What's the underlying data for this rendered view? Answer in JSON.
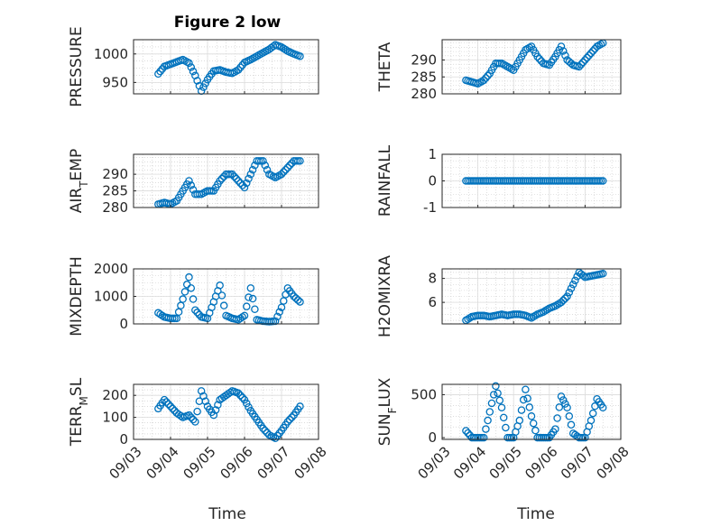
{
  "figure": {
    "title": "Figure 2 low",
    "xlabel": "Time"
  },
  "colors": {
    "marker": "#0072BD",
    "axis": "#262626",
    "grid": "#c8c8c8"
  },
  "chart_data": [
    {
      "type": "scatter",
      "ylabel": "PRESSURE",
      "ylim": [
        930,
        1025
      ],
      "yticks": [
        950,
        1000
      ],
      "xlim": [
        "09/03",
        "09/08"
      ],
      "grid": true,
      "x": [
        "09/03 16:00",
        "09/03 20:00",
        "09/04 00:00",
        "09/04 04:00",
        "09/04 08:00",
        "09/04 12:00",
        "09/04 16:00",
        "09/04 20:00",
        "09/05 00:00",
        "09/05 04:00",
        "09/05 08:00",
        "09/05 12:00",
        "09/05 16:00",
        "09/05 20:00",
        "09/06 00:00",
        "09/06 04:00",
        "09/06 08:00",
        "09/06 12:00",
        "09/06 16:00",
        "09/06 20:00",
        "09/07 00:00",
        "09/07 04:00",
        "09/07 08:00",
        "09/07 12:00"
      ],
      "y": [
        965,
        978,
        982,
        986,
        990,
        984,
        962,
        935,
        955,
        970,
        972,
        968,
        966,
        972,
        985,
        990,
        996,
        1002,
        1008,
        1016,
        1012,
        1005,
        1000,
        996
      ]
    },
    {
      "type": "scatter",
      "ylabel": "THETA",
      "ylim": [
        280,
        296
      ],
      "yticks": [
        280,
        285,
        290
      ],
      "xlim": [
        "09/03",
        "09/08"
      ],
      "grid": true,
      "x": [
        "09/03 16:00",
        "09/03 20:00",
        "09/04 00:00",
        "09/04 04:00",
        "09/04 08:00",
        "09/04 12:00",
        "09/04 16:00",
        "09/04 20:00",
        "09/05 00:00",
        "09/05 04:00",
        "09/05 08:00",
        "09/05 12:00",
        "09/05 16:00",
        "09/05 20:00",
        "09/06 00:00",
        "09/06 04:00",
        "09/06 08:00",
        "09/06 12:00",
        "09/06 16:00",
        "09/06 20:00",
        "09/07 00:00",
        "09/07 04:00",
        "09/07 08:00",
        "09/07 12:00"
      ],
      "y": [
        284,
        283.5,
        283,
        284,
        286,
        289,
        289,
        288,
        287,
        290,
        293,
        294,
        291,
        289,
        288.5,
        291,
        294,
        290,
        288.5,
        288,
        290,
        292,
        294,
        295
      ]
    },
    {
      "type": "scatter",
      "ylabel": "AIR_TEMP",
      "ylim": [
        280,
        296
      ],
      "yticks": [
        280,
        285,
        290
      ],
      "xlim": [
        "09/03",
        "09/08"
      ],
      "grid": true,
      "x": [
        "09/03 16:00",
        "09/03 20:00",
        "09/04 00:00",
        "09/04 04:00",
        "09/04 08:00",
        "09/04 12:00",
        "09/04 16:00",
        "09/04 20:00",
        "09/05 00:00",
        "09/05 04:00",
        "09/05 08:00",
        "09/05 12:00",
        "09/05 16:00",
        "09/05 20:00",
        "09/06 00:00",
        "09/06 04:00",
        "09/06 08:00",
        "09/06 12:00",
        "09/06 16:00",
        "09/06 20:00",
        "09/07 00:00",
        "09/07 04:00",
        "09/07 08:00",
        "09/07 12:00"
      ],
      "y": [
        281,
        281.5,
        281,
        282,
        285,
        288,
        284,
        284,
        285,
        285,
        288,
        290,
        290,
        288,
        286,
        290,
        294,
        294,
        290,
        289,
        290,
        292,
        294,
        294
      ]
    },
    {
      "type": "scatter",
      "ylabel": "RAINFALL",
      "ylim": [
        -1,
        1
      ],
      "yticks": [
        -1,
        0,
        1
      ],
      "xlim": [
        "09/03",
        "09/08"
      ],
      "grid": true,
      "x": [
        "09/03 16:00",
        "09/03 20:00",
        "09/04 00:00",
        "09/04 04:00",
        "09/04 08:00",
        "09/04 12:00",
        "09/04 16:00",
        "09/04 20:00",
        "09/05 00:00",
        "09/05 04:00",
        "09/05 08:00",
        "09/05 12:00",
        "09/05 16:00",
        "09/05 20:00",
        "09/06 00:00",
        "09/06 04:00",
        "09/06 08:00",
        "09/06 12:00",
        "09/06 16:00",
        "09/06 20:00",
        "09/07 00:00",
        "09/07 04:00",
        "09/07 08:00",
        "09/07 12:00"
      ],
      "y": [
        0,
        0,
        0,
        0,
        0,
        0,
        0,
        0,
        0,
        0,
        0,
        0,
        0,
        0,
        0,
        0,
        0,
        0,
        0,
        0,
        0,
        0,
        0,
        0
      ]
    },
    {
      "type": "scatter",
      "ylabel": "MIXDEPTH",
      "ylim": [
        0,
        2000
      ],
      "yticks": [
        0,
        1000,
        2000
      ],
      "xlim": [
        "09/03",
        "09/08"
      ],
      "grid": true,
      "x": [
        "09/03 16:00",
        "09/03 20:00",
        "09/04 00:00",
        "09/04 04:00",
        "09/04 08:00",
        "09/04 12:00",
        "09/04 16:00",
        "09/04 20:00",
        "09/05 00:00",
        "09/05 04:00",
        "09/05 08:00",
        "09/05 12:00",
        "09/05 16:00",
        "09/05 20:00",
        "09/06 00:00",
        "09/06 04:00",
        "09/06 08:00",
        "09/06 12:00",
        "09/06 16:00",
        "09/06 20:00",
        "09/07 00:00",
        "09/07 04:00",
        "09/07 08:00",
        "09/07 12:00"
      ],
      "y": [
        400,
        250,
        200,
        200,
        900,
        1700,
        500,
        250,
        200,
        800,
        1400,
        300,
        200,
        150,
        300,
        1300,
        150,
        100,
        80,
        100,
        600,
        1300,
        1000,
        800
      ]
    },
    {
      "type": "scatter",
      "ylabel": "H2OMIXRA",
      "ylim": [
        4.2,
        8.8
      ],
      "yticks": [
        6,
        8
      ],
      "xlim": [
        "09/03",
        "09/08"
      ],
      "grid": true,
      "x": [
        "09/03 16:00",
        "09/03 20:00",
        "09/04 00:00",
        "09/04 04:00",
        "09/04 08:00",
        "09/04 12:00",
        "09/04 16:00",
        "09/04 20:00",
        "09/05 00:00",
        "09/05 04:00",
        "09/05 08:00",
        "09/05 12:00",
        "09/05 16:00",
        "09/05 20:00",
        "09/06 00:00",
        "09/06 04:00",
        "09/06 08:00",
        "09/06 12:00",
        "09/06 16:00",
        "09/06 20:00",
        "09/07 00:00",
        "09/07 04:00",
        "09/07 08:00",
        "09/07 12:00"
      ],
      "y": [
        4.5,
        4.8,
        4.9,
        4.9,
        4.8,
        4.9,
        5.0,
        4.9,
        5.0,
        5.0,
        4.9,
        4.7,
        5.0,
        5.2,
        5.5,
        5.7,
        6.0,
        6.5,
        7.5,
        8.5,
        8.1,
        8.2,
        8.3,
        8.4
      ]
    },
    {
      "type": "scatter",
      "ylabel": "TERR_MSL",
      "ylim": [
        0,
        250
      ],
      "yticks": [
        0,
        100,
        200
      ],
      "xlim": [
        "09/03",
        "09/08"
      ],
      "grid": true,
      "x": [
        "09/03 16:00",
        "09/03 20:00",
        "09/04 00:00",
        "09/04 04:00",
        "09/04 08:00",
        "09/04 12:00",
        "09/04 16:00",
        "09/04 20:00",
        "09/05 00:00",
        "09/05 04:00",
        "09/05 08:00",
        "09/05 12:00",
        "09/05 16:00",
        "09/05 20:00",
        "09/06 00:00",
        "09/06 04:00",
        "09/06 08:00",
        "09/06 12:00",
        "09/06 16:00",
        "09/06 20:00",
        "09/07 00:00",
        "09/07 04:00",
        "09/07 08:00",
        "09/07 12:00"
      ],
      "y": [
        140,
        180,
        150,
        120,
        100,
        110,
        80,
        220,
        150,
        110,
        180,
        200,
        220,
        210,
        180,
        130,
        90,
        50,
        20,
        5,
        40,
        80,
        110,
        150
      ]
    },
    {
      "type": "scatter",
      "ylabel": "SUN_FLUX",
      "ylim": [
        -20,
        620
      ],
      "yticks": [
        0,
        500
      ],
      "xlim": [
        "09/03",
        "09/08"
      ],
      "grid": true,
      "x": [
        "09/03 16:00",
        "09/03 20:00",
        "09/04 00:00",
        "09/04 04:00",
        "09/04 08:00",
        "09/04 12:00",
        "09/04 16:00",
        "09/04 20:00",
        "09/05 00:00",
        "09/05 04:00",
        "09/05 08:00",
        "09/05 12:00",
        "09/05 16:00",
        "09/05 20:00",
        "09/06 00:00",
        "09/06 04:00",
        "09/06 08:00",
        "09/06 12:00",
        "09/06 16:00",
        "09/06 20:00",
        "09/07 00:00",
        "09/07 04:00",
        "09/07 08:00",
        "09/07 12:00"
      ],
      "y": [
        80,
        0,
        0,
        0,
        300,
        600,
        350,
        0,
        0,
        200,
        560,
        250,
        0,
        0,
        0,
        100,
        480,
        350,
        50,
        0,
        0,
        200,
        450,
        350
      ]
    }
  ]
}
